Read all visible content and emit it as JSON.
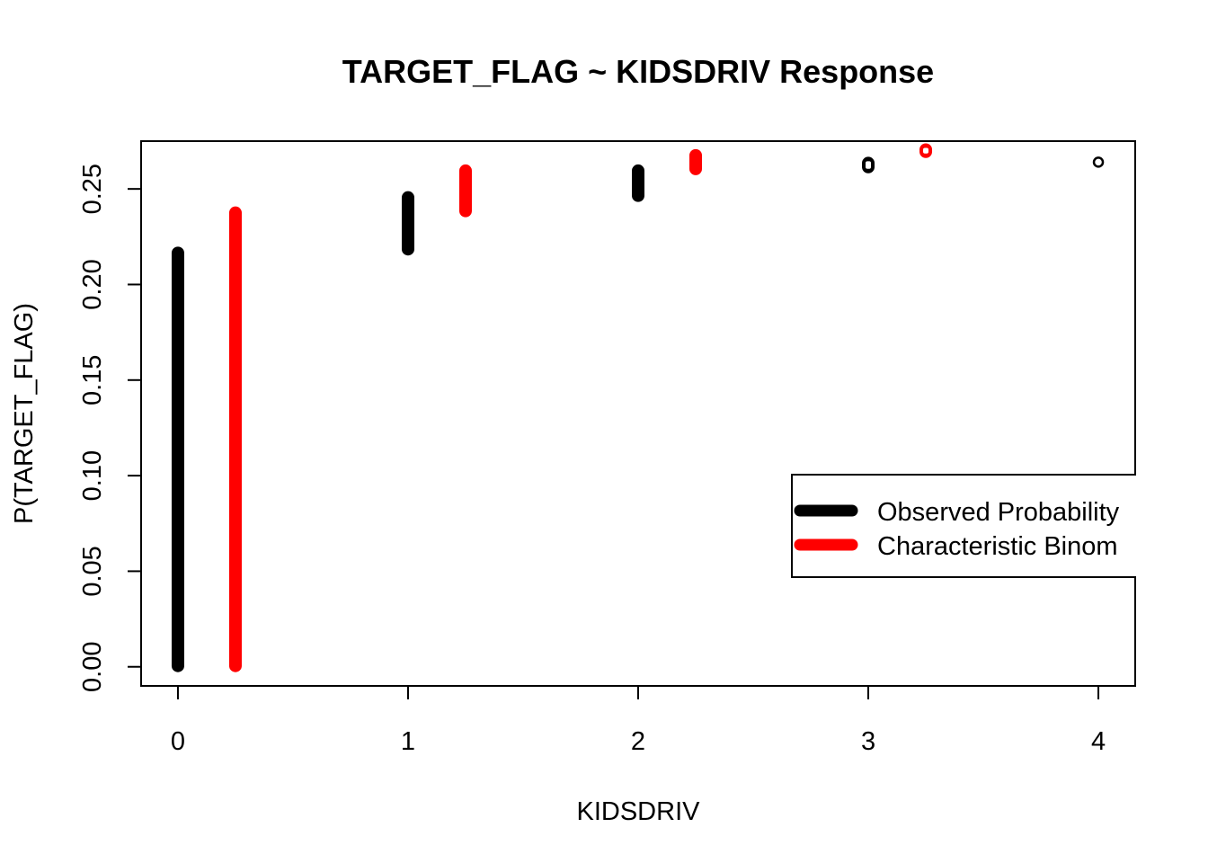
{
  "chart_data": {
    "type": "scatter",
    "title": "TARGET_FLAG ~ KIDSDRIV Response",
    "xlabel": "KIDSDRIV",
    "ylabel": "P(TARGET_FLAG)",
    "xlim": [
      -0.16,
      4.16
    ],
    "ylim": [
      -0.01,
      0.275
    ],
    "x_ticks": [
      0,
      1,
      2,
      3,
      4
    ],
    "x_tick_labels": [
      "0",
      "1",
      "2",
      "3",
      "4"
    ],
    "y_ticks": [
      0.0,
      0.05,
      0.1,
      0.15,
      0.2,
      0.25
    ],
    "y_tick_labels": [
      "0.00",
      "0.05",
      "0.10",
      "0.15",
      "0.20",
      "0.25"
    ],
    "legend": {
      "placement": "right",
      "entries": [
        "Observed Probability",
        "Characteristic Binom"
      ]
    },
    "series": [
      {
        "name": "Observed Probability",
        "color": "#000000",
        "marker": "open-circle",
        "ranges": [
          {
            "x": 0,
            "y_min": 0.0,
            "y_max": 0.217
          },
          {
            "x": 1,
            "y_min": 0.218,
            "y_max": 0.246
          },
          {
            "x": 2,
            "y_min": 0.246,
            "y_max": 0.26
          },
          {
            "x": 3,
            "y_min": 0.261,
            "y_max": 0.264
          },
          {
            "x": 4,
            "y_min": 0.264,
            "y_max": 0.264
          }
        ]
      },
      {
        "name": "Characteristic Binom",
        "color": "#ff0000",
        "marker": "open-circle",
        "ranges": [
          {
            "x": 0.25,
            "y_min": 0.0,
            "y_max": 0.238
          },
          {
            "x": 1.25,
            "y_min": 0.238,
            "y_max": 0.26
          },
          {
            "x": 2.25,
            "y_min": 0.26,
            "y_max": 0.268
          },
          {
            "x": 3.25,
            "y_min": 0.269,
            "y_max": 0.271
          }
        ]
      }
    ]
  }
}
